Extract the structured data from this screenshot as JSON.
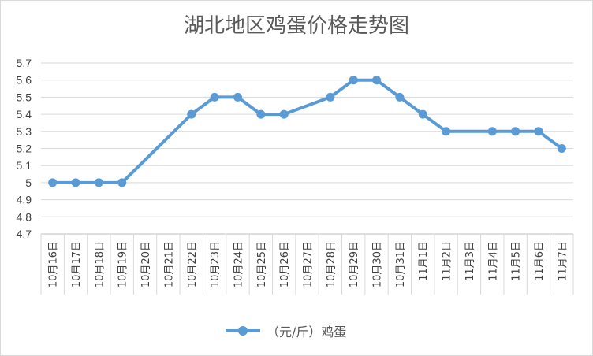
{
  "chart_data": {
    "type": "line",
    "title": "湖北地区鸡蛋价格走势图",
    "categories": [
      "10月16日",
      "10月17日",
      "10月18日",
      "10月19日",
      "10月20日",
      "10月21日",
      "10月22日",
      "10月23日",
      "10月24日",
      "10月25日",
      "10月26日",
      "10月27日",
      "10月28日",
      "10月29日",
      "10月30日",
      "10月31日",
      "11月1日",
      "11月2日",
      "11月3日",
      "11月4日",
      "11月5日",
      "11月6日",
      "11月7日"
    ],
    "series": [
      {
        "name": "（元/斤）鸡蛋",
        "color": "#5b9bd5",
        "values": [
          5.0,
          5.0,
          5.0,
          5.0,
          null,
          null,
          5.4,
          5.5,
          5.5,
          5.4,
          5.4,
          null,
          5.5,
          5.6,
          5.6,
          5.5,
          5.4,
          5.3,
          null,
          5.3,
          5.3,
          5.3,
          5.2
        ]
      }
    ],
    "y_ticks": [
      "4.7",
      "4.8",
      "4.9",
      "5",
      "5.1",
      "5.2",
      "5.3",
      "5.4",
      "5.5",
      "5.6",
      "5.7"
    ],
    "ylim": [
      4.7,
      5.7
    ],
    "xlabel": "",
    "ylabel": "",
    "grid": true,
    "legend_position": "bottom"
  }
}
